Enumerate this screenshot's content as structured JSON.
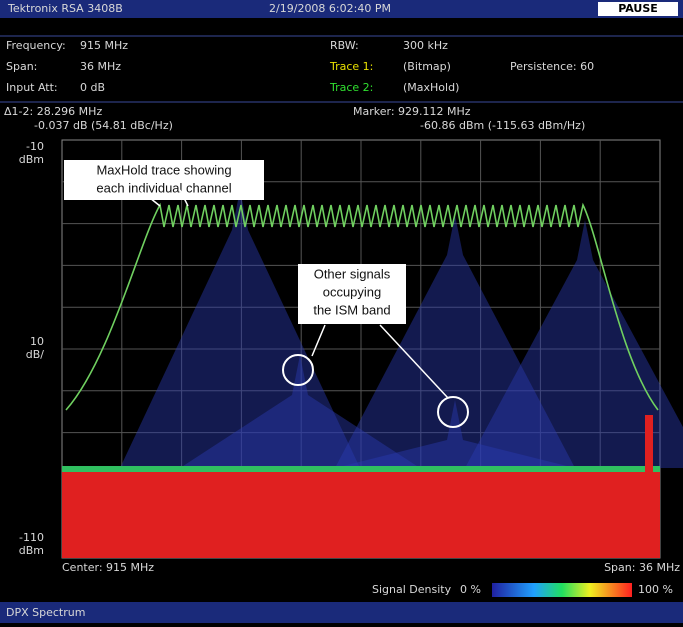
{
  "header": {
    "brand": "Tektronix RSA 3408B",
    "datetime": "2/19/2008 6:02:40 PM",
    "status": "PAUSE"
  },
  "settings": {
    "left": [
      {
        "label": "Frequency:",
        "value": "915 MHz"
      },
      {
        "label": "Span:",
        "value": "36 MHz"
      },
      {
        "label": "Input Att:",
        "value": "0 dB"
      }
    ],
    "rbw": {
      "label": "RBW:",
      "value": "300 kHz"
    },
    "trace1": {
      "label": "Trace 1:",
      "value": "(Bitmap)",
      "extra": "Persistence: 60"
    },
    "trace2": {
      "label": "Trace 2:",
      "value": "(MaxHold)"
    }
  },
  "readouts": {
    "delta": "Δ1-2: 28.296 MHz",
    "delta_level": "-0.037 dB (54.81 dBc/Hz)",
    "marker": "Marker: 929.112 MHz",
    "marker_level": "-60.86 dBm (-115.63 dBm/Hz)"
  },
  "axis": {
    "top": "-10",
    "top_unit": "dBm",
    "scale": "10",
    "scale_unit": "dB/",
    "bottom": "-110",
    "bottom_unit": "dBm"
  },
  "footer": {
    "center": "Center: 915 MHz",
    "span": "Span: 36 MHz",
    "density_label": "Signal Density",
    "density_min": "0 %",
    "density_max": "100 %",
    "mode": "DPX Spectrum"
  },
  "annotations": [
    {
      "lines": [
        "MaxHold trace showing",
        "each individual channel"
      ]
    },
    {
      "lines": [
        "Other signals",
        "occupying",
        "the ISM band"
      ]
    }
  ]
}
